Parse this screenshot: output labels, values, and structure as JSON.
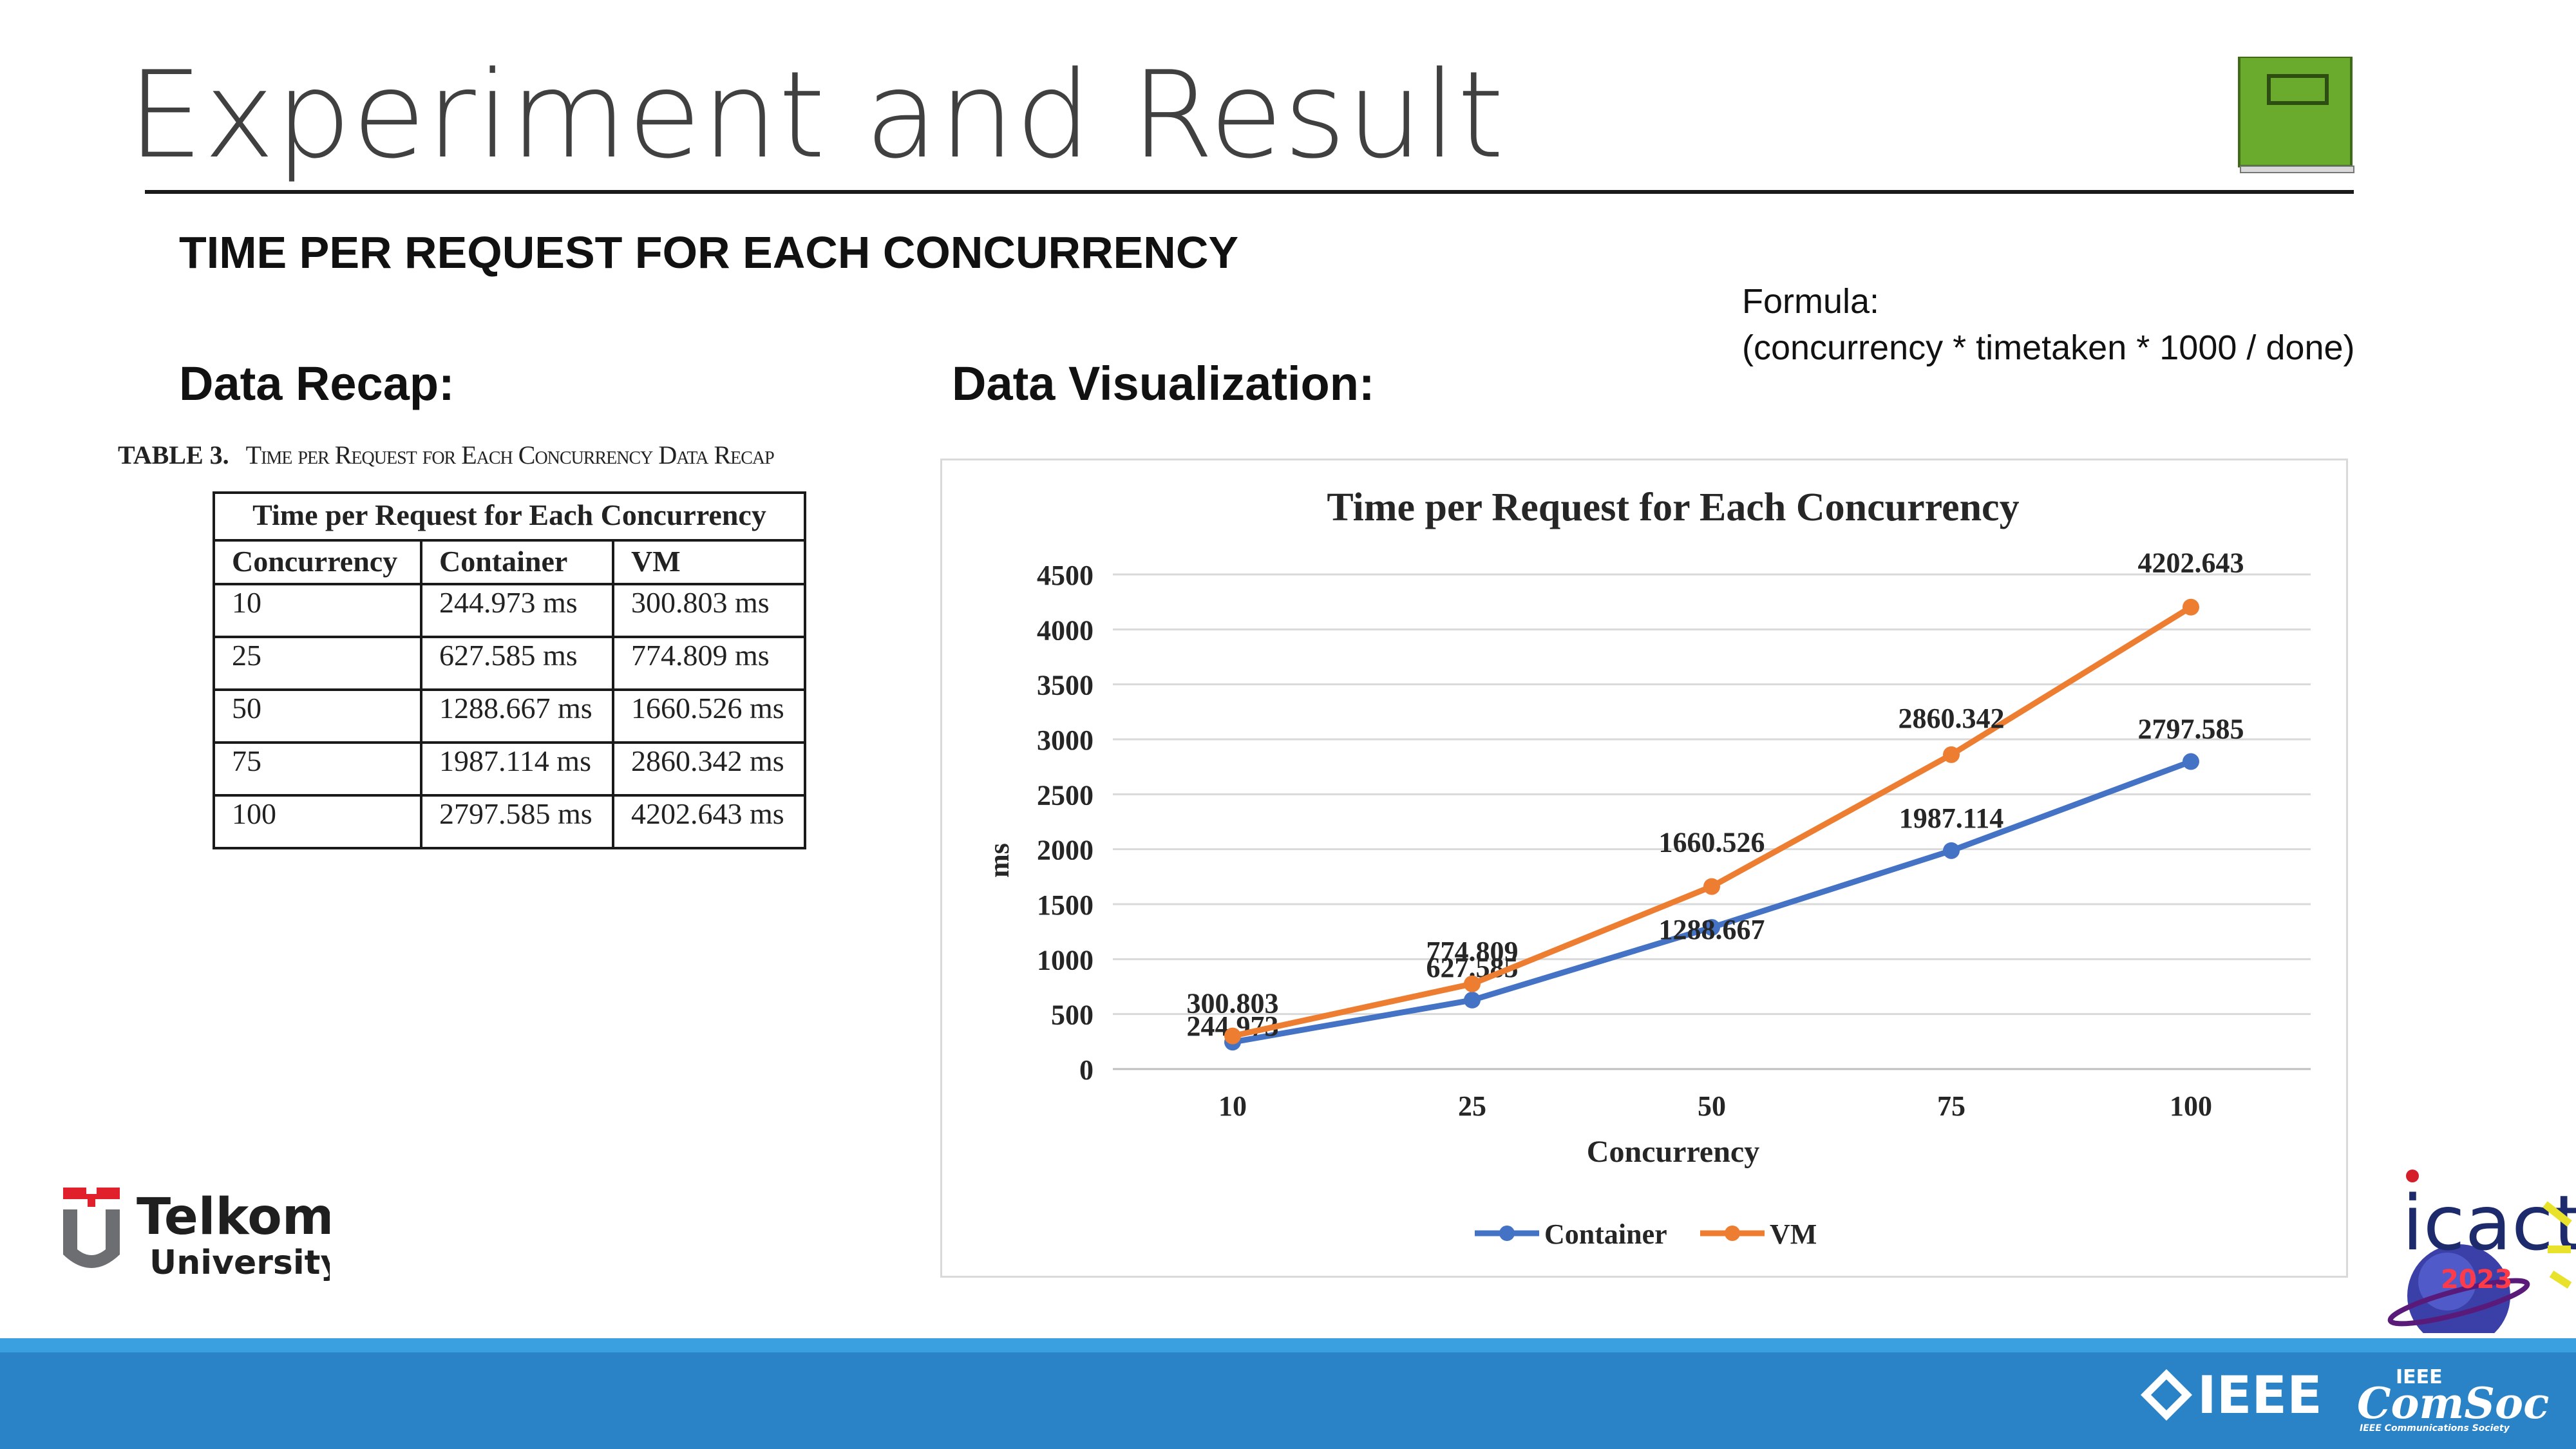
{
  "slide": {
    "title": "Experiment and Result",
    "subtitle": "TIME PER REQUEST FOR EACH CONCURRENCY",
    "recap_heading": "Data Recap:",
    "viz_heading": "Data Visualization:",
    "formula_label": "Formula:",
    "formula_text": "(concurrency * timetaken * 1000 / done)"
  },
  "table": {
    "caption_number": "TABLE 3.",
    "caption_text": "Time per Request for Each Concurrency Data Recap",
    "header": "Time per Request for Each Concurrency",
    "columns": [
      "Concurrency",
      "Container",
      "VM"
    ],
    "rows": [
      [
        "10",
        "244.973 ms",
        "300.803 ms"
      ],
      [
        "25",
        "627.585 ms",
        "774.809 ms"
      ],
      [
        "50",
        "1288.667 ms",
        "1660.526 ms"
      ],
      [
        "75",
        "1987.114 ms",
        "2860.342 ms"
      ],
      [
        "100",
        "2797.585 ms",
        "4202.643 ms"
      ]
    ]
  },
  "chart_data": {
    "type": "line",
    "title": "Time per Request for Each Concurrency",
    "xlabel": "Concurrency",
    "ylabel": "ms",
    "categories": [
      "10",
      "25",
      "50",
      "75",
      "100"
    ],
    "ylim": [
      0,
      4500
    ],
    "yticks": [
      0,
      500,
      1000,
      1500,
      2000,
      2500,
      3000,
      3500,
      4000,
      4500
    ],
    "grid": true,
    "legend_position": "bottom",
    "series": [
      {
        "name": "Container",
        "color": "#4472c4",
        "values": [
          244.973,
          627.585,
          1288.667,
          1987.114,
          2797.585
        ]
      },
      {
        "name": "VM",
        "color": "#ed7d31",
        "values": [
          300.803,
          774.809,
          1660.526,
          2860.342,
          4202.643
        ]
      }
    ]
  },
  "logos": {
    "telkom_line1": "Telkom",
    "telkom_line2": "University",
    "icact_text": "icact",
    "icact_year": "2023",
    "ieee_text": "IEEE",
    "comsoc_small": "IEEE",
    "comsoc_main": "ComSoc",
    "comsoc_tagline": "IEEE Communications Society"
  },
  "colors": {
    "footer": "#2a83c6",
    "book_icon": "#6aab2e",
    "telkom_red": "#e0202b",
    "telkom_gray": "#6d6e71"
  }
}
